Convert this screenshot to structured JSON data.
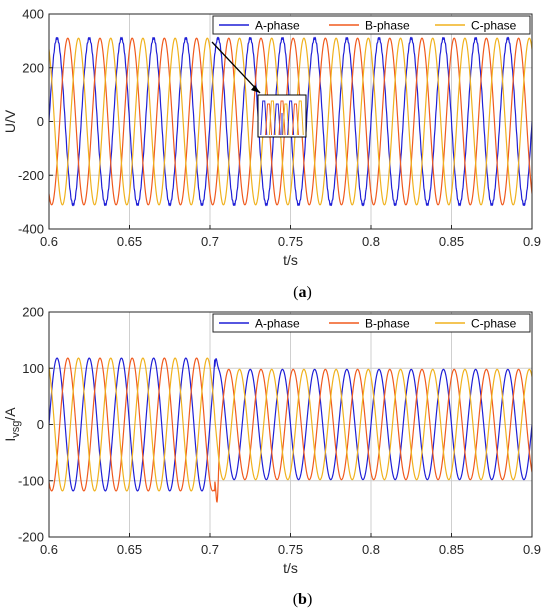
{
  "colors": {
    "a_phase": "#1f1fd6",
    "b_phase": "#f05a1e",
    "c_phase": "#f0b21e",
    "grid": "#cfcfcf",
    "axis": "#262626"
  },
  "chart_data": [
    {
      "type": "line",
      "caption_letter": "a",
      "xlabel": "t/s",
      "ylabel": "U/V",
      "xlim": [
        0.6,
        0.9
      ],
      "ylim": [
        -400,
        400
      ],
      "xticks": [
        0.6,
        0.65,
        0.7,
        0.75,
        0.8,
        0.85,
        0.9
      ],
      "xtick_labels": [
        "0.6",
        "0.65",
        "0.7",
        "0.75",
        "0.8",
        "0.85",
        "0.9"
      ],
      "yticks": [
        -400,
        -200,
        0,
        200,
        400
      ],
      "ytick_labels": [
        "-400",
        "-200",
        "0",
        "200",
        "400"
      ],
      "grid": true,
      "legend_placement": "top-right",
      "frequency_hz": 50,
      "series": [
        {
          "name": "A-phase",
          "amplitude": 310,
          "phase_deg": 0
        },
        {
          "name": "B-phase",
          "amplitude": 310,
          "phase_deg": -120
        },
        {
          "name": "C-phase",
          "amplitude": 310,
          "phase_deg": 120
        }
      ],
      "inset": {
        "type": "zoom",
        "note_x": 0.7
      }
    },
    {
      "type": "line",
      "caption_letter": "b",
      "xlabel": "t/s",
      "ylabel": "Ivsg/A",
      "ylabel_main": "I",
      "ylabel_sub": "vsg",
      "ylabel_tail": "/A",
      "xlim": [
        0.6,
        0.9
      ],
      "ylim": [
        -200,
        200
      ],
      "xticks": [
        0.6,
        0.65,
        0.7,
        0.75,
        0.8,
        0.85,
        0.9
      ],
      "xtick_labels": [
        "0.6",
        "0.65",
        "0.7",
        "0.75",
        "0.8",
        "0.85",
        "0.9"
      ],
      "yticks": [
        -200,
        -100,
        0,
        100,
        200
      ],
      "ytick_labels": [
        "-200",
        "-100",
        "0",
        "100",
        "200"
      ],
      "grid": true,
      "legend_placement": "top-right",
      "frequency_hz": 50,
      "step_time": 0.703,
      "series": [
        {
          "name": "A-phase",
          "amplitude_before": 118,
          "amplitude_after": 98,
          "phase_deg": 0
        },
        {
          "name": "B-phase",
          "amplitude_before": 118,
          "amplitude_after": 98,
          "phase_deg": -120
        },
        {
          "name": "C-phase",
          "amplitude_before": 118,
          "amplitude_after": 98,
          "phase_deg": 120
        }
      ],
      "transient_peaks": [
        {
          "series": "A-phase",
          "t": 0.7035,
          "value": 133
        },
        {
          "series": "B-phase",
          "t": 0.7045,
          "value": -148
        }
      ]
    }
  ]
}
